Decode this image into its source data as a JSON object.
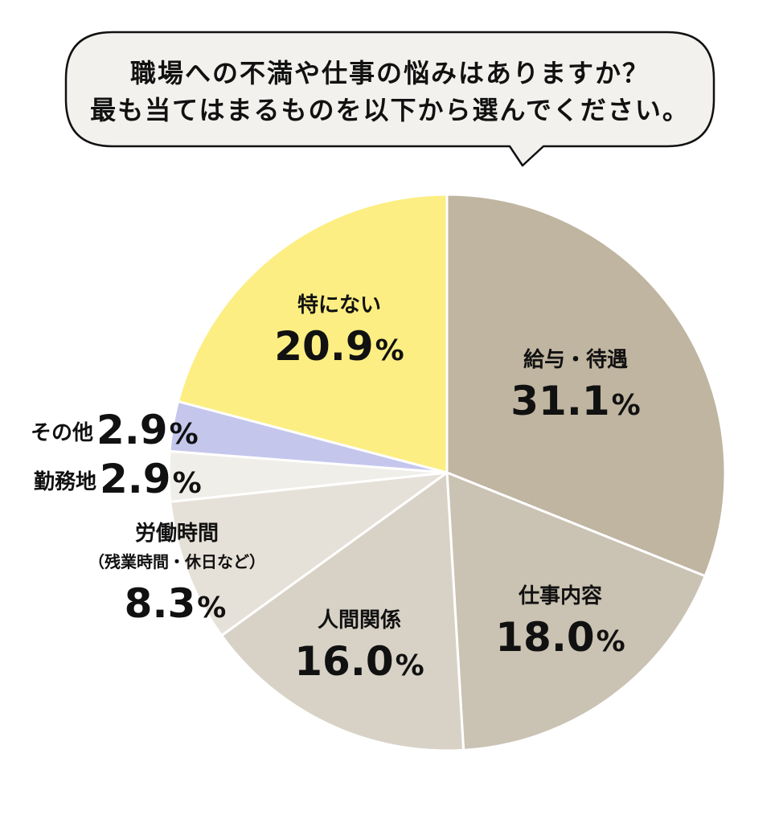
{
  "question": {
    "line1": "職場への不満や仕事の悩みはありますか？",
    "line2": "最も当てはまるものを以下から選んでください。"
  },
  "chart_data": {
    "type": "pie",
    "start_angle_deg": 0,
    "direction": "clockwise",
    "slices": [
      {
        "label": "給与・待遇",
        "value": 31.1,
        "display": "31.1",
        "unit": "%",
        "color": "#bfb5a0"
      },
      {
        "label": "仕事内容",
        "value": 18.0,
        "display": "18.0",
        "unit": "%",
        "color": "#cac2b2"
      },
      {
        "label": "人間関係",
        "value": 16.0,
        "display": "16.0",
        "unit": "%",
        "color": "#d8d2c6"
      },
      {
        "label": "労働時間",
        "sublabel": "（残業時間・休日など）",
        "value": 8.3,
        "display": "8.3",
        "unit": "%",
        "color": "#e6e1d8"
      },
      {
        "label": "勤務地",
        "value": 2.9,
        "display": "2.9",
        "unit": "%",
        "color": "#f0eee9"
      },
      {
        "label": "その他",
        "value": 2.9,
        "display": "2.9",
        "unit": "%",
        "color": "#c4c6ec"
      },
      {
        "label": "特にない",
        "value": 20.9,
        "display": "20.9",
        "unit": "%",
        "color": "#fcee82"
      }
    ]
  }
}
